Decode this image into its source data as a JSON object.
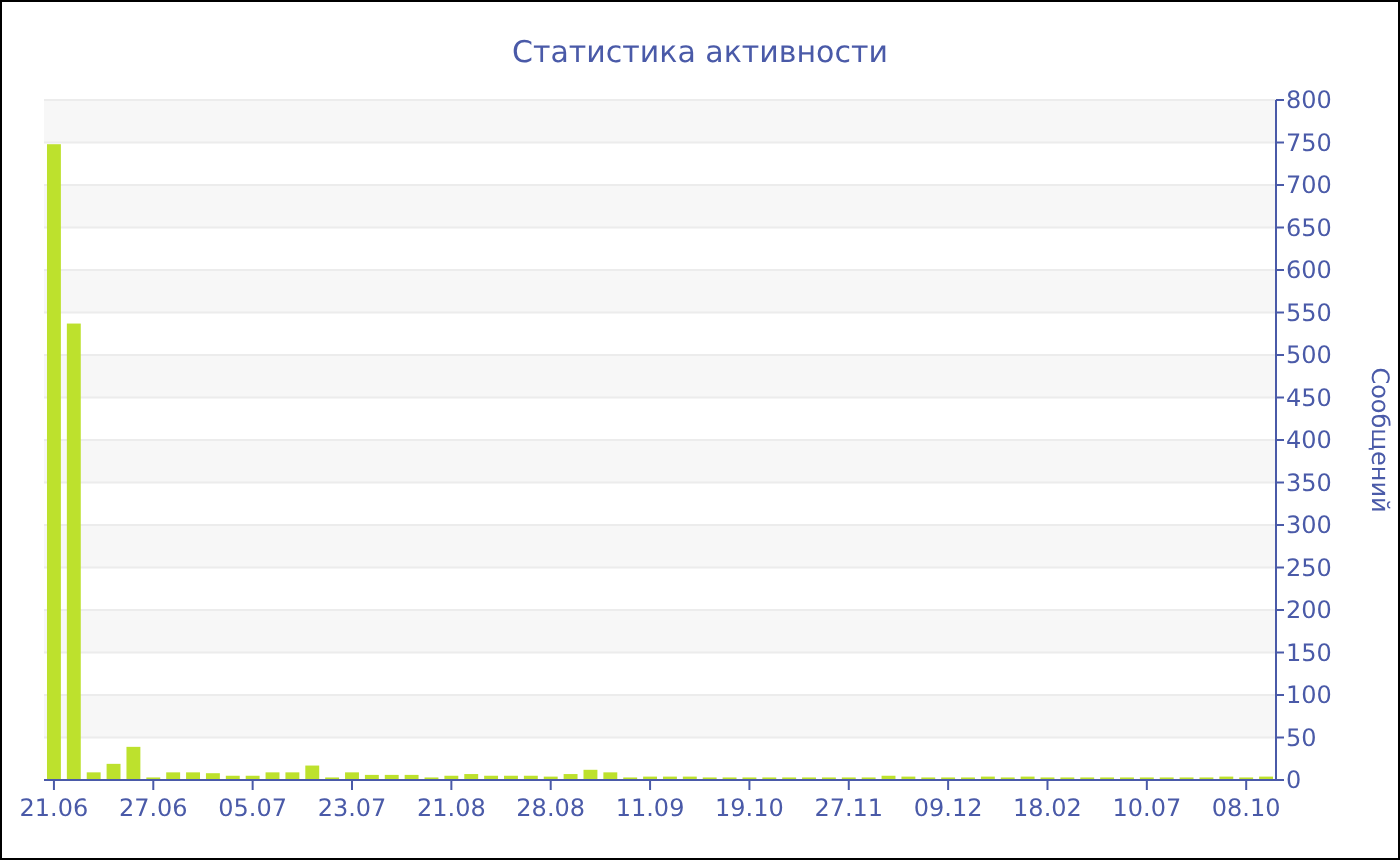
{
  "chart_data": {
    "type": "bar",
    "title": "Статистика активности",
    "ylabel": "Сообщений",
    "categories": [
      "21.06",
      null,
      null,
      null,
      null,
      "27.06",
      null,
      null,
      null,
      null,
      "05.07",
      null,
      null,
      null,
      null,
      "23.07",
      null,
      null,
      null,
      null,
      "21.08",
      null,
      null,
      null,
      null,
      "28.08",
      null,
      null,
      null,
      null,
      "11.09",
      null,
      null,
      null,
      null,
      "19.10",
      null,
      null,
      null,
      null,
      "27.11",
      null,
      null,
      null,
      null,
      "09.12",
      null,
      null,
      null,
      null,
      "18.02",
      null,
      null,
      null,
      null,
      "10.07",
      null,
      null,
      null,
      null,
      "08.10",
      null
    ],
    "values": [
      748,
      537,
      9,
      19,
      39,
      3,
      9,
      9,
      8,
      5,
      5,
      9,
      9,
      17,
      3,
      9,
      6,
      6,
      6,
      3,
      5,
      7,
      5,
      5,
      5,
      4,
      7,
      12,
      9,
      3,
      4,
      4,
      4,
      3,
      3,
      3,
      3,
      3,
      3,
      3,
      3,
      3,
      5,
      4,
      3,
      3,
      3,
      4,
      3,
      4,
      3,
      3,
      3,
      3,
      3,
      3,
      3,
      3,
      3,
      4,
      3,
      4
    ],
    "color": "#bde12d",
    "ylim": [
      0,
      800
    ],
    "yticks": [
      0,
      50,
      100,
      150,
      200,
      250,
      300,
      350,
      400,
      450,
      500,
      550,
      600,
      650,
      700,
      750,
      800
    ],
    "grid": true
  }
}
